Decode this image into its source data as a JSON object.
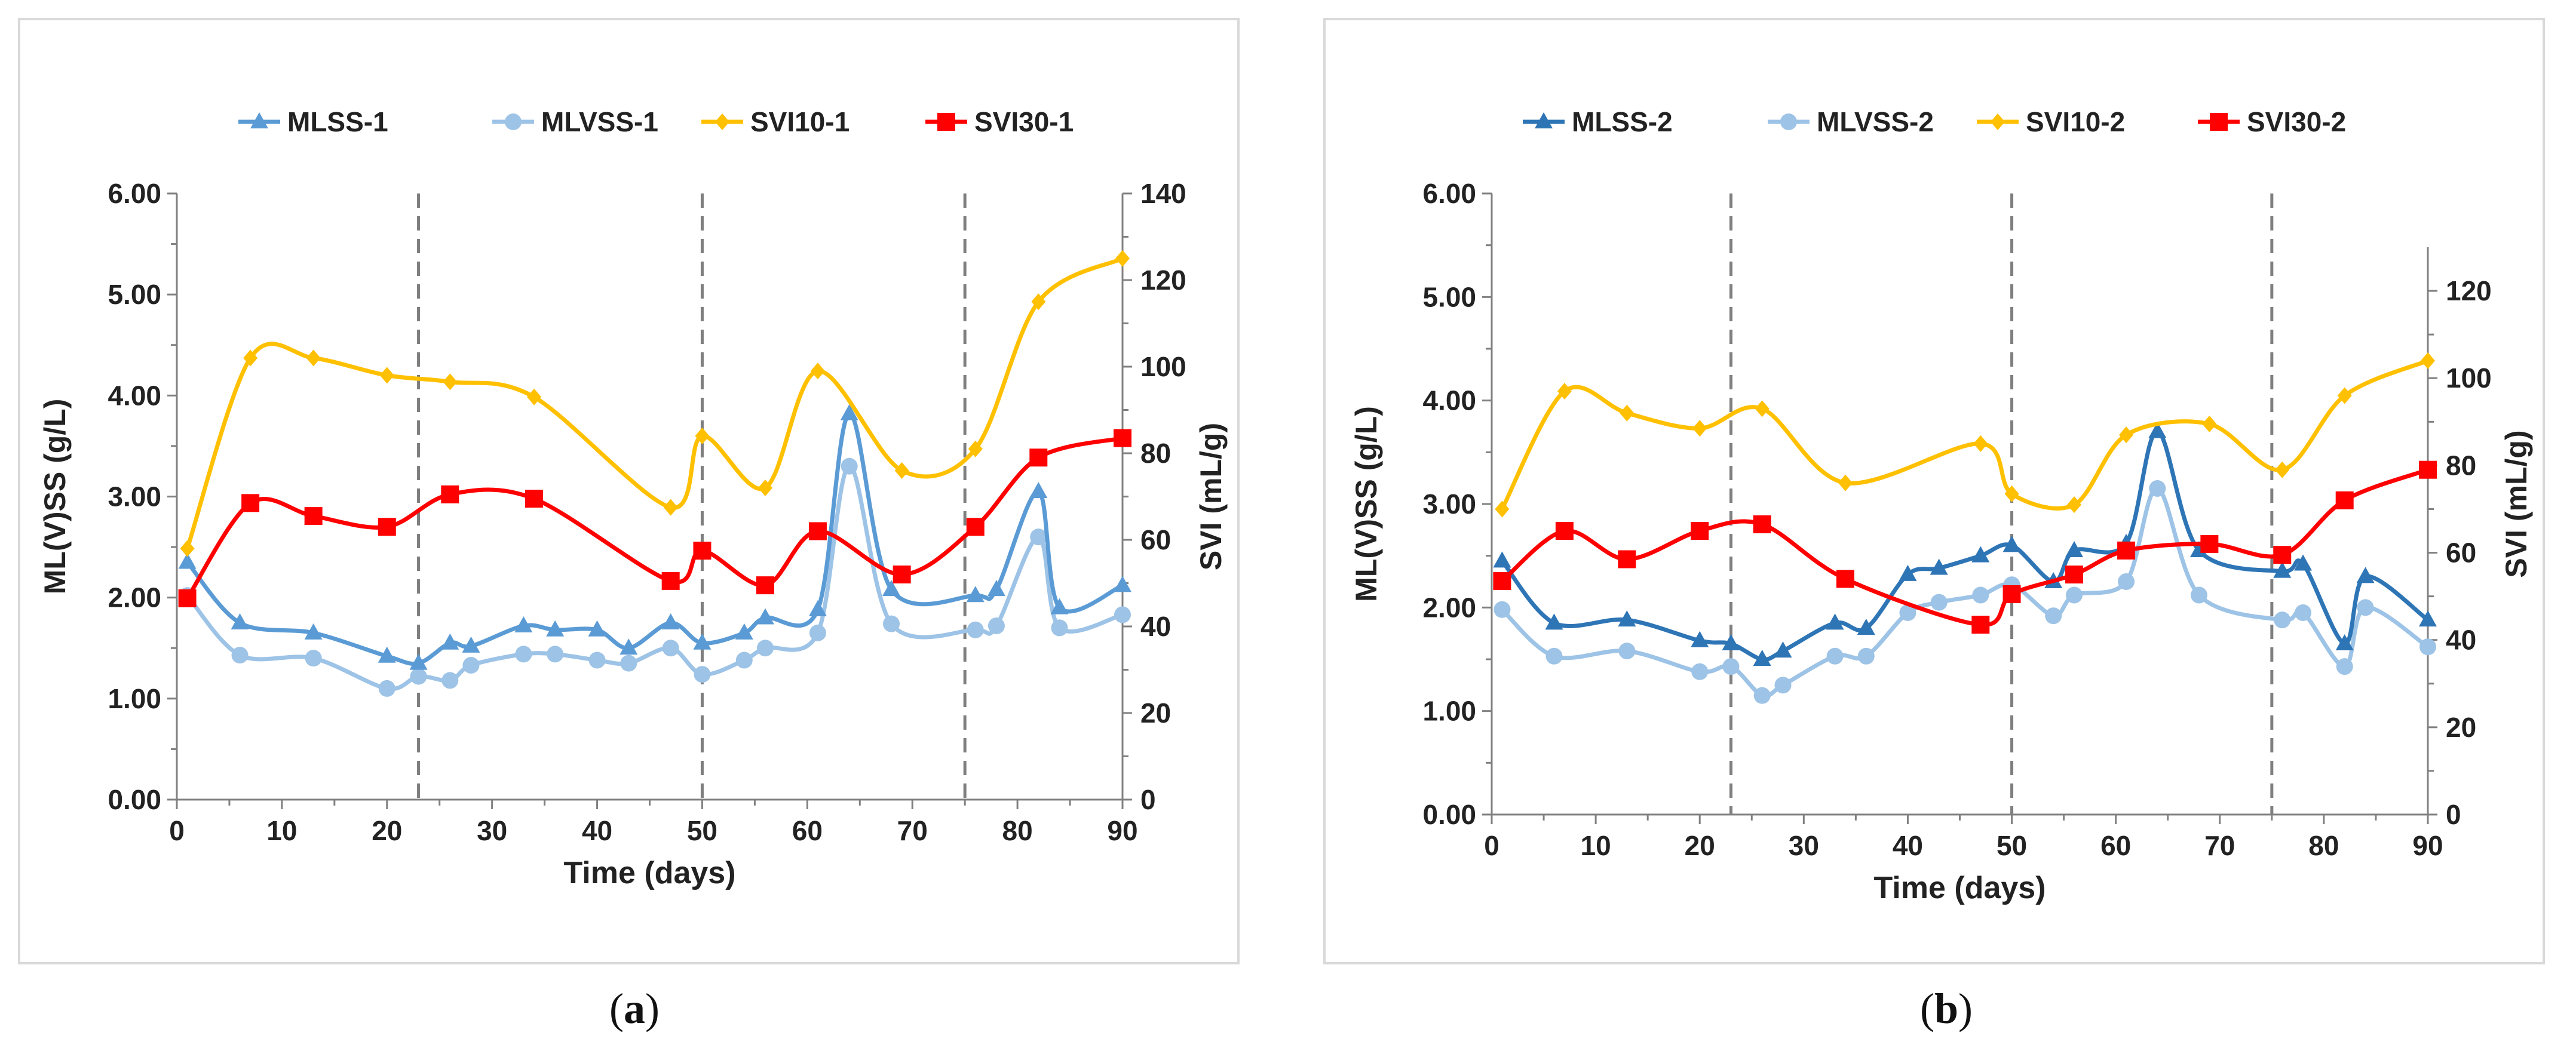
{
  "panels": [
    {
      "caption": "a",
      "chart_data": {
        "type": "line",
        "xlabel": "Time (days)",
        "ylabel": "ML(V)SS (g/L)",
        "y2label": "SVI (mL/g)",
        "xlim": [
          0,
          90
        ],
        "ylim": [
          0,
          6
        ],
        "y2lim": [
          0,
          140
        ],
        "x_ticks": [
          0,
          10,
          20,
          30,
          40,
          50,
          60,
          70,
          80,
          90
        ],
        "y_ticks": [
          "0.00",
          "1.00",
          "2.00",
          "3.00",
          "4.00",
          "5.00",
          "6.00"
        ],
        "y2_ticks": [
          0,
          20,
          40,
          60,
          80,
          100,
          120,
          140
        ],
        "phase_dividers": [
          23,
          50,
          75
        ],
        "legend_position": "top",
        "series": [
          {
            "name": "MLSS-1",
            "axis": "left",
            "color": "#5b9bd5",
            "marker": "triangle",
            "x": [
              1,
              6,
              13,
              20,
              23,
              26,
              28,
              33,
              36,
              40,
              43,
              47,
              50,
              54,
              56,
              61,
              64,
              68,
              76,
              78,
              82,
              84,
              90
            ],
            "values": [
              2.35,
              1.75,
              1.65,
              1.42,
              1.35,
              1.55,
              1.52,
              1.72,
              1.68,
              1.68,
              1.5,
              1.75,
              1.55,
              1.65,
              1.8,
              1.88,
              3.82,
              2.08,
              2.02,
              2.08,
              3.05,
              1.9,
              2.12
            ]
          },
          {
            "name": "MLVSS-1",
            "axis": "left",
            "color": "#9dc3e6",
            "marker": "circle",
            "x": [
              1,
              6,
              13,
              20,
              23,
              26,
              28,
              33,
              36,
              40,
              43,
              47,
              50,
              54,
              56,
              61,
              64,
              68,
              76,
              78,
              82,
              84,
              90
            ],
            "values": [
              2.02,
              1.43,
              1.4,
              1.1,
              1.22,
              1.18,
              1.33,
              1.44,
              1.44,
              1.38,
              1.35,
              1.5,
              1.24,
              1.38,
              1.5,
              1.65,
              3.3,
              1.74,
              1.68,
              1.72,
              2.6,
              1.7,
              1.83
            ]
          },
          {
            "name": "SVI10-1",
            "axis": "right",
            "color": "#ffc000",
            "marker": "diamond",
            "x": [
              1,
              7,
              13,
              20,
              26,
              34,
              47,
              50,
              56,
              61,
              69,
              76,
              82,
              90
            ],
            "values": [
              58,
              102,
              102,
              98,
              96.5,
              93,
              67.5,
              84,
              72,
              99,
              76,
              81,
              115,
              125
            ]
          },
          {
            "name": "SVI30-1",
            "axis": "right",
            "color": "#ff0000",
            "marker": "square",
            "x": [
              1,
              7,
              13,
              20,
              26,
              34,
              47,
              50,
              56,
              61,
              69,
              76,
              82,
              90
            ],
            "values": [
              46.5,
              68.5,
              65.5,
              63,
              70.5,
              69.5,
              50.5,
              57.5,
              49.5,
              62,
              52,
              63,
              79,
              83.5
            ]
          }
        ]
      }
    },
    {
      "caption": "b",
      "chart_data": {
        "type": "line",
        "xlabel": "Time (days)",
        "ylabel": "ML(V)SS (g/L)",
        "y2label": "SVI (mL/g)",
        "xlim": [
          0,
          90
        ],
        "ylim": [
          0,
          6
        ],
        "y2lim": [
          0,
          130
        ],
        "x_ticks": [
          0,
          10,
          20,
          30,
          40,
          50,
          60,
          70,
          80,
          90
        ],
        "y_ticks": [
          "0.00",
          "1.00",
          "2.00",
          "3.00",
          "4.00",
          "5.00",
          "6.00"
        ],
        "y2_ticks": [
          0,
          20,
          40,
          60,
          80,
          100,
          120
        ],
        "phase_dividers": [
          23,
          50,
          75
        ],
        "legend_position": "top",
        "series": [
          {
            "name": "MLSS-2",
            "axis": "left",
            "color": "#2e75b6",
            "marker": "triangle",
            "x": [
              1,
              6,
              13,
              20,
              23,
              26,
              28,
              33,
              36,
              40,
              43,
              47,
              50,
              54,
              56,
              61,
              64,
              68,
              76,
              78,
              82,
              84,
              90
            ],
            "values": [
              2.45,
              1.85,
              1.88,
              1.68,
              1.65,
              1.5,
              1.58,
              1.85,
              1.8,
              2.32,
              2.38,
              2.5,
              2.6,
              2.25,
              2.55,
              2.62,
              3.7,
              2.55,
              2.35,
              2.42,
              1.65,
              2.3,
              1.88
            ]
          },
          {
            "name": "MLVSS-2",
            "axis": "left",
            "color": "#9dc3e6",
            "marker": "circle",
            "x": [
              1,
              6,
              13,
              20,
              23,
              26,
              28,
              33,
              36,
              40,
              43,
              47,
              50,
              54,
              56,
              61,
              64,
              68,
              76,
              78,
              82,
              84,
              90
            ],
            "values": [
              1.98,
              1.53,
              1.58,
              1.38,
              1.43,
              1.15,
              1.25,
              1.53,
              1.53,
              1.95,
              2.05,
              2.12,
              2.22,
              1.92,
              2.12,
              2.25,
              3.15,
              2.12,
              1.88,
              1.95,
              1.43,
              2.0,
              1.62
            ]
          },
          {
            "name": "SVI10-2",
            "axis": "right",
            "color": "#ffc000",
            "marker": "diamond",
            "x": [
              1,
              7,
              13,
              20,
              26,
              34,
              47,
              50,
              56,
              61,
              69,
              76,
              82,
              90
            ],
            "values": [
              70,
              97,
              92,
              88.5,
              93,
              76,
              85,
              73.5,
              71,
              87,
              89.5,
              79,
              96,
              104
            ]
          },
          {
            "name": "SVI30-2",
            "axis": "right",
            "color": "#ff0000",
            "marker": "square",
            "x": [
              1,
              7,
              13,
              20,
              26,
              34,
              47,
              50,
              56,
              61,
              69,
              76,
              82,
              90
            ],
            "values": [
              53.5,
              65,
              58.5,
              65,
              66.5,
              54,
              43.5,
              50.5,
              55,
              60.5,
              62,
              59.5,
              72,
              79
            ]
          }
        ]
      }
    }
  ]
}
